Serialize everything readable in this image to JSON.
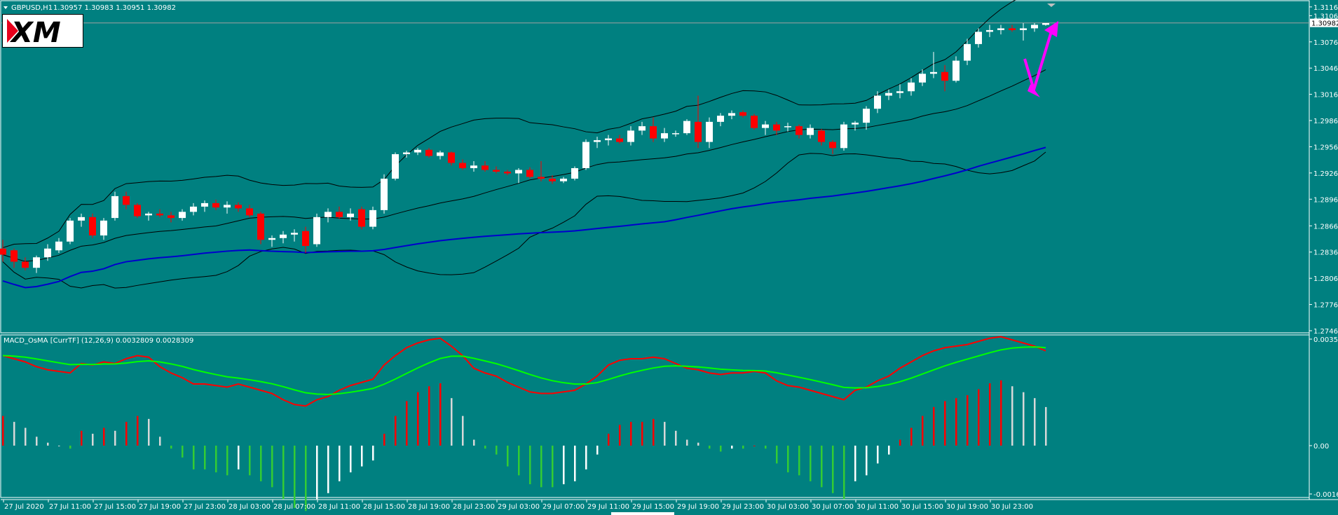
{
  "header": {
    "symbol_label": "GBPUSD,H1",
    "ohlc_text": "1.30957 1.30983 1.30951 1.30982"
  },
  "logo": {
    "text": "XM"
  },
  "price_axis": {
    "labels": [
      "1.31165",
      "1.31065",
      "1.30982",
      "1.30765",
      "1.30465",
      "1.30165",
      "1.29865",
      "1.29565",
      "1.29265",
      "1.28965",
      "1.28660",
      "1.28360",
      "1.28060",
      "1.27760",
      "1.27460"
    ],
    "current_price": "1.30982"
  },
  "indicator": {
    "title": "MACD_OsMA [CurrTF] (12,26,9) 0.0032809 0.0028309",
    "axis_labels": [
      "0.003516",
      "0.00",
      "-0.00166"
    ]
  },
  "time_axis": {
    "labels": [
      "27 Jul 2020",
      "27 Jul 11:00",
      "27 Jul 15:00",
      "27 Jul 19:00",
      "27 Jul 23:00",
      "28 Jul 03:00",
      "28 Jul 07:00",
      "28 Jul 11:00",
      "28 Jul 15:00",
      "28 Jul 19:00",
      "28 Jul 23:00",
      "29 Jul 03:00",
      "29 Jul 07:00",
      "29 Jul 11:00",
      "29 Jul 15:00",
      "29 Jul 19:00",
      "29 Jul 23:00",
      "30 Jul 03:00",
      "30 Jul 07:00",
      "30 Jul 11:00",
      "30 Jul 15:00",
      "30 Jul 19:00",
      "30 Jul 23:00"
    ]
  },
  "colors": {
    "background": "#008080",
    "bull": "#ffffff",
    "bear": "#ff0000",
    "ma": "#0000cc",
    "bands": "#000000",
    "macd": "#ff0000",
    "signal": "#00ff00",
    "arrow": "#ff00ff"
  },
  "chart_data": {
    "type": "candlestick",
    "symbol": "GBPUSD",
    "timeframe": "H1",
    "ylim": [
      1.2746,
      1.3118
    ],
    "candles": [
      {
        "o": 1.284,
        "h": 1.285,
        "l": 1.2825,
        "c": 1.2833
      },
      {
        "o": 1.2838,
        "h": 1.284,
        "l": 1.2818,
        "c": 1.2825
      },
      {
        "o": 1.2825,
        "h": 1.283,
        "l": 1.2815,
        "c": 1.2818
      },
      {
        "o": 1.2818,
        "h": 1.2832,
        "l": 1.2812,
        "c": 1.283
      },
      {
        "o": 1.283,
        "h": 1.2845,
        "l": 1.2826,
        "c": 1.284
      },
      {
        "o": 1.2838,
        "h": 1.2852,
        "l": 1.2835,
        "c": 1.2848
      },
      {
        "o": 1.2848,
        "h": 1.2875,
        "l": 1.2845,
        "c": 1.2872
      },
      {
        "o": 1.2872,
        "h": 1.288,
        "l": 1.2865,
        "c": 1.2876
      },
      {
        "o": 1.2876,
        "h": 1.288,
        "l": 1.2852,
        "c": 1.2855
      },
      {
        "o": 1.2855,
        "h": 1.2875,
        "l": 1.285,
        "c": 1.2872
      },
      {
        "o": 1.2875,
        "h": 1.2905,
        "l": 1.2872,
        "c": 1.29
      },
      {
        "o": 1.29,
        "h": 1.2905,
        "l": 1.2885,
        "c": 1.289
      },
      {
        "o": 1.289,
        "h": 1.2892,
        "l": 1.2875,
        "c": 1.2877
      },
      {
        "o": 1.2878,
        "h": 1.2882,
        "l": 1.2872,
        "c": 1.288
      },
      {
        "o": 1.288,
        "h": 1.2885,
        "l": 1.2876,
        "c": 1.2878
      },
      {
        "o": 1.2878,
        "h": 1.2882,
        "l": 1.287,
        "c": 1.2875
      },
      {
        "o": 1.2875,
        "h": 1.2885,
        "l": 1.2872,
        "c": 1.2882
      },
      {
        "o": 1.2882,
        "h": 1.2892,
        "l": 1.2878,
        "c": 1.2888
      },
      {
        "o": 1.2888,
        "h": 1.2895,
        "l": 1.2882,
        "c": 1.2892
      },
      {
        "o": 1.2892,
        "h": 1.2896,
        "l": 1.2884,
        "c": 1.2887
      },
      {
        "o": 1.2887,
        "h": 1.2894,
        "l": 1.288,
        "c": 1.289
      },
      {
        "o": 1.289,
        "h": 1.2893,
        "l": 1.2882,
        "c": 1.2886
      },
      {
        "o": 1.2886,
        "h": 1.289,
        "l": 1.2876,
        "c": 1.2878
      },
      {
        "o": 1.288,
        "h": 1.2882,
        "l": 1.2845,
        "c": 1.285
      },
      {
        "o": 1.285,
        "h": 1.2855,
        "l": 1.2842,
        "c": 1.2852
      },
      {
        "o": 1.2852,
        "h": 1.286,
        "l": 1.2846,
        "c": 1.2856
      },
      {
        "o": 1.2856,
        "h": 1.2862,
        "l": 1.2848,
        "c": 1.2858
      },
      {
        "o": 1.286,
        "h": 1.2865,
        "l": 1.2835,
        "c": 1.2843
      },
      {
        "o": 1.2845,
        "h": 1.288,
        "l": 1.2842,
        "c": 1.2876
      },
      {
        "o": 1.2876,
        "h": 1.2886,
        "l": 1.287,
        "c": 1.2882
      },
      {
        "o": 1.2882,
        "h": 1.2888,
        "l": 1.2874,
        "c": 1.2876
      },
      {
        "o": 1.2876,
        "h": 1.2886,
        "l": 1.2872,
        "c": 1.288
      },
      {
        "o": 1.2885,
        "h": 1.2888,
        "l": 1.2862,
        "c": 1.2865
      },
      {
        "o": 1.2865,
        "h": 1.2888,
        "l": 1.2862,
        "c": 1.2884
      },
      {
        "o": 1.2884,
        "h": 1.2925,
        "l": 1.288,
        "c": 1.292
      },
      {
        "o": 1.292,
        "h": 1.295,
        "l": 1.2918,
        "c": 1.2948
      },
      {
        "o": 1.2948,
        "h": 1.2952,
        "l": 1.2944,
        "c": 1.295
      },
      {
        "o": 1.295,
        "h": 1.2955,
        "l": 1.2947,
        "c": 1.2953
      },
      {
        "o": 1.2953,
        "h": 1.2955,
        "l": 1.2944,
        "c": 1.2946
      },
      {
        "o": 1.2946,
        "h": 1.2952,
        "l": 1.2942,
        "c": 1.295
      },
      {
        "o": 1.295,
        "h": 1.2951,
        "l": 1.2935,
        "c": 1.2938
      },
      {
        "o": 1.2938,
        "h": 1.2942,
        "l": 1.293,
        "c": 1.2932
      },
      {
        "o": 1.2932,
        "h": 1.294,
        "l": 1.2928,
        "c": 1.2935
      },
      {
        "o": 1.2935,
        "h": 1.294,
        "l": 1.2928,
        "c": 1.293
      },
      {
        "o": 1.293,
        "h": 1.2934,
        "l": 1.2926,
        "c": 1.2928
      },
      {
        "o": 1.2928,
        "h": 1.293,
        "l": 1.2924,
        "c": 1.2926
      },
      {
        "o": 1.2926,
        "h": 1.2932,
        "l": 1.2915,
        "c": 1.293
      },
      {
        "o": 1.293,
        "h": 1.2933,
        "l": 1.292,
        "c": 1.2922
      },
      {
        "o": 1.2922,
        "h": 1.294,
        "l": 1.2917,
        "c": 1.292
      },
      {
        "o": 1.292,
        "h": 1.2924,
        "l": 1.2914,
        "c": 1.2917
      },
      {
        "o": 1.2917,
        "h": 1.2922,
        "l": 1.2915,
        "c": 1.292
      },
      {
        "o": 1.292,
        "h": 1.2934,
        "l": 1.2918,
        "c": 1.2932
      },
      {
        "o": 1.2932,
        "h": 1.2965,
        "l": 1.293,
        "c": 1.2962
      },
      {
        "o": 1.2962,
        "h": 1.2968,
        "l": 1.2955,
        "c": 1.2964
      },
      {
        "o": 1.2964,
        "h": 1.297,
        "l": 1.2958,
        "c": 1.2966
      },
      {
        "o": 1.2966,
        "h": 1.297,
        "l": 1.296,
        "c": 1.2962
      },
      {
        "o": 1.2962,
        "h": 1.298,
        "l": 1.2958,
        "c": 1.2975
      },
      {
        "o": 1.2975,
        "h": 1.2985,
        "l": 1.297,
        "c": 1.298
      },
      {
        "o": 1.298,
        "h": 1.299,
        "l": 1.2962,
        "c": 1.2966
      },
      {
        "o": 1.2966,
        "h": 1.2978,
        "l": 1.2962,
        "c": 1.2972
      },
      {
        "o": 1.2972,
        "h": 1.2975,
        "l": 1.2968,
        "c": 1.2972
      },
      {
        "o": 1.2972,
        "h": 1.2988,
        "l": 1.297,
        "c": 1.2986
      },
      {
        "o": 1.2985,
        "h": 1.3015,
        "l": 1.2955,
        "c": 1.2962
      },
      {
        "o": 1.2962,
        "h": 1.299,
        "l": 1.2955,
        "c": 1.2985
      },
      {
        "o": 1.2985,
        "h": 1.2995,
        "l": 1.298,
        "c": 1.2992
      },
      {
        "o": 1.2992,
        "h": 1.2998,
        "l": 1.2988,
        "c": 1.2995
      },
      {
        "o": 1.2996,
        "h": 1.2998,
        "l": 1.299,
        "c": 1.2992
      },
      {
        "o": 1.2992,
        "h": 1.2994,
        "l": 1.2976,
        "c": 1.2978
      },
      {
        "o": 1.2978,
        "h": 1.2986,
        "l": 1.297,
        "c": 1.2982
      },
      {
        "o": 1.2982,
        "h": 1.2985,
        "l": 1.297,
        "c": 1.2975
      },
      {
        "o": 1.298,
        "h": 1.2984,
        "l": 1.2974,
        "c": 1.298
      },
      {
        "o": 1.298,
        "h": 1.2982,
        "l": 1.2966,
        "c": 1.297
      },
      {
        "o": 1.297,
        "h": 1.2982,
        "l": 1.2966,
        "c": 1.2978
      },
      {
        "o": 1.2975,
        "h": 1.2977,
        "l": 1.2958,
        "c": 1.2962
      },
      {
        "o": 1.2962,
        "h": 1.2964,
        "l": 1.2948,
        "c": 1.2955
      },
      {
        "o": 1.2955,
        "h": 1.2985,
        "l": 1.2952,
        "c": 1.2982
      },
      {
        "o": 1.2982,
        "h": 1.2986,
        "l": 1.2975,
        "c": 1.2984
      },
      {
        "o": 1.2984,
        "h": 1.3003,
        "l": 1.2976,
        "c": 1.3
      },
      {
        "o": 1.3,
        "h": 1.302,
        "l": 1.2995,
        "c": 1.3015
      },
      {
        "o": 1.3015,
        "h": 1.3022,
        "l": 1.301,
        "c": 1.3018
      },
      {
        "o": 1.3018,
        "h": 1.3028,
        "l": 1.3012,
        "c": 1.302
      },
      {
        "o": 1.302,
        "h": 1.3035,
        "l": 1.3015,
        "c": 1.303
      },
      {
        "o": 1.303,
        "h": 1.3045,
        "l": 1.3026,
        "c": 1.304
      },
      {
        "o": 1.304,
        "h": 1.3065,
        "l": 1.3035,
        "c": 1.3042
      },
      {
        "o": 1.3042,
        "h": 1.305,
        "l": 1.302,
        "c": 1.3032
      },
      {
        "o": 1.3032,
        "h": 1.306,
        "l": 1.303,
        "c": 1.3055
      },
      {
        "o": 1.3055,
        "h": 1.308,
        "l": 1.305,
        "c": 1.3074
      },
      {
        "o": 1.3074,
        "h": 1.3092,
        "l": 1.307,
        "c": 1.3088
      },
      {
        "o": 1.3088,
        "h": 1.3096,
        "l": 1.3082,
        "c": 1.309
      },
      {
        "o": 1.309,
        "h": 1.3096,
        "l": 1.3085,
        "c": 1.3092
      },
      {
        "o": 1.3092,
        "h": 1.3096,
        "l": 1.3088,
        "c": 1.309
      },
      {
        "o": 1.309,
        "h": 1.3098,
        "l": 1.3078,
        "c": 1.3092
      },
      {
        "o": 1.3092,
        "h": 1.3098,
        "l": 1.3088,
        "c": 1.3096
      },
      {
        "o": 1.3096,
        "h": 1.3098,
        "l": 1.3095,
        "c": 1.3098
      }
    ],
    "macd_histogram": [
      0.001,
      0.0008,
      0.0006,
      0.0003,
      0.0001,
      0.0,
      -0.0001,
      0.0005,
      0.0004,
      0.0006,
      0.0005,
      0.0008,
      0.001,
      0.0009,
      0.0003,
      -0.0001,
      -0.0004,
      -0.0008,
      -0.0008,
      -0.0009,
      -0.001,
      -0.0008,
      -0.001,
      -0.0012,
      -0.0014,
      -0.0018,
      -0.0021,
      -0.0022,
      -0.0018,
      -0.0016,
      -0.0012,
      -0.0009,
      -0.0007,
      -0.0005,
      0.0004,
      0.001,
      0.0015,
      0.0018,
      0.002,
      0.0021,
      0.0016,
      0.001,
      0.0002,
      -0.0001,
      -0.0003,
      -0.0007,
      -0.001,
      -0.0013,
      -0.0014,
      -0.0014,
      -0.0013,
      -0.0012,
      -0.0008,
      -0.0003,
      0.0004,
      0.0007,
      0.0008,
      0.0008,
      0.0009,
      0.0008,
      0.0005,
      0.0002,
      0.0001,
      -0.0001,
      -0.0002,
      -0.0001,
      -0.0001,
      0.0,
      -0.0001,
      -0.0006,
      -0.0009,
      -0.001,
      -0.0012,
      -0.0014,
      -0.0016,
      -0.0018,
      -0.0012,
      -0.001,
      -0.0006,
      -0.0003,
      0.0002,
      0.0006,
      0.001,
      0.0013,
      0.0015,
      0.0016,
      0.0017,
      0.0019,
      0.0021,
      0.0022,
      0.002,
      0.0018,
      0.0016,
      0.0013
    ]
  }
}
